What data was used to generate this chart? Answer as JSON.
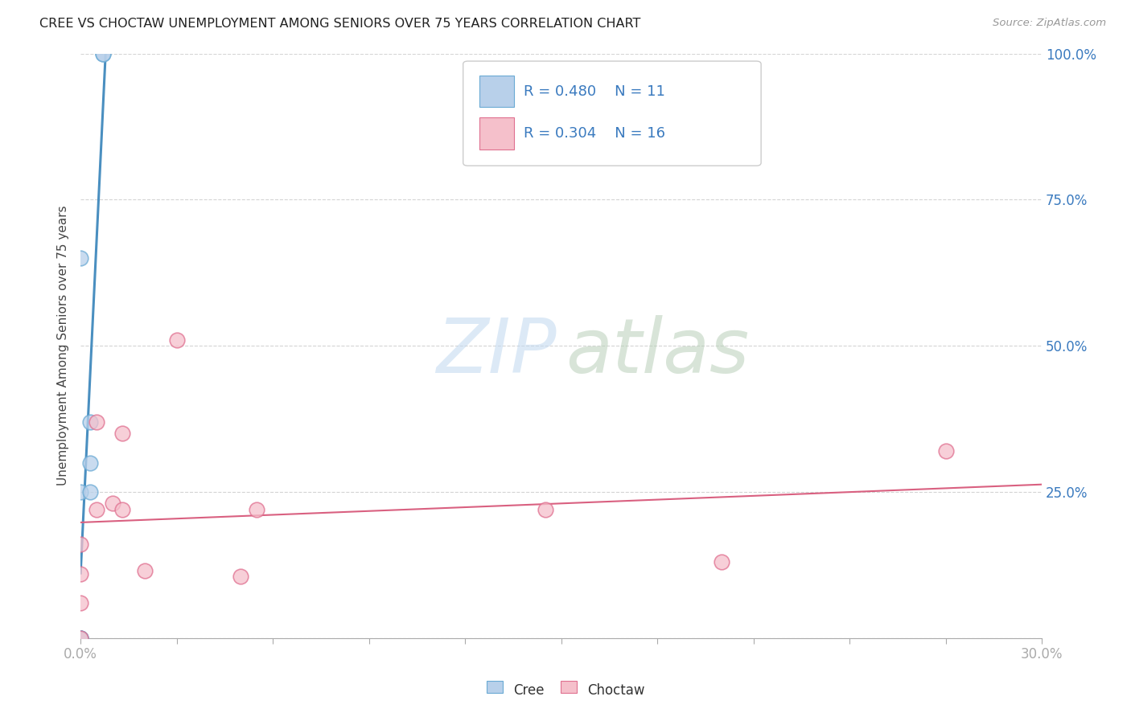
{
  "title": "CREE VS CHOCTAW UNEMPLOYMENT AMONG SENIORS OVER 75 YEARS CORRELATION CHART",
  "source": "Source: ZipAtlas.com",
  "ylabel": "Unemployment Among Seniors over 75 years",
  "xlim": [
    0.0,
    0.3
  ],
  "ylim": [
    0.0,
    1.0
  ],
  "cree_R": 0.48,
  "cree_N": 11,
  "choctaw_R": 0.304,
  "choctaw_N": 16,
  "cree_face": "#b8d0ea",
  "cree_edge": "#6aaad4",
  "choctaw_face": "#f5c0cb",
  "choctaw_edge": "#e07090",
  "cree_line": "#4a8fc0",
  "choctaw_line": "#d96080",
  "legend_text_color": "#3a7abf",
  "cree_x": [
    0.0,
    0.0,
    0.0,
    0.0,
    0.0,
    0.003,
    0.003,
    0.003,
    0.007,
    0.007,
    0.0
  ],
  "cree_y": [
    0.0,
    0.0,
    0.0,
    0.0,
    0.25,
    0.3,
    0.37,
    0.25,
    1.0,
    1.0,
    0.65
  ],
  "choctaw_x": [
    0.0,
    0.0,
    0.0,
    0.0,
    0.005,
    0.005,
    0.01,
    0.013,
    0.013,
    0.02,
    0.03,
    0.05,
    0.055,
    0.145,
    0.2,
    0.27
  ],
  "choctaw_y": [
    0.0,
    0.06,
    0.11,
    0.16,
    0.22,
    0.37,
    0.23,
    0.22,
    0.35,
    0.115,
    0.51,
    0.105,
    0.22,
    0.22,
    0.13,
    0.32
  ]
}
